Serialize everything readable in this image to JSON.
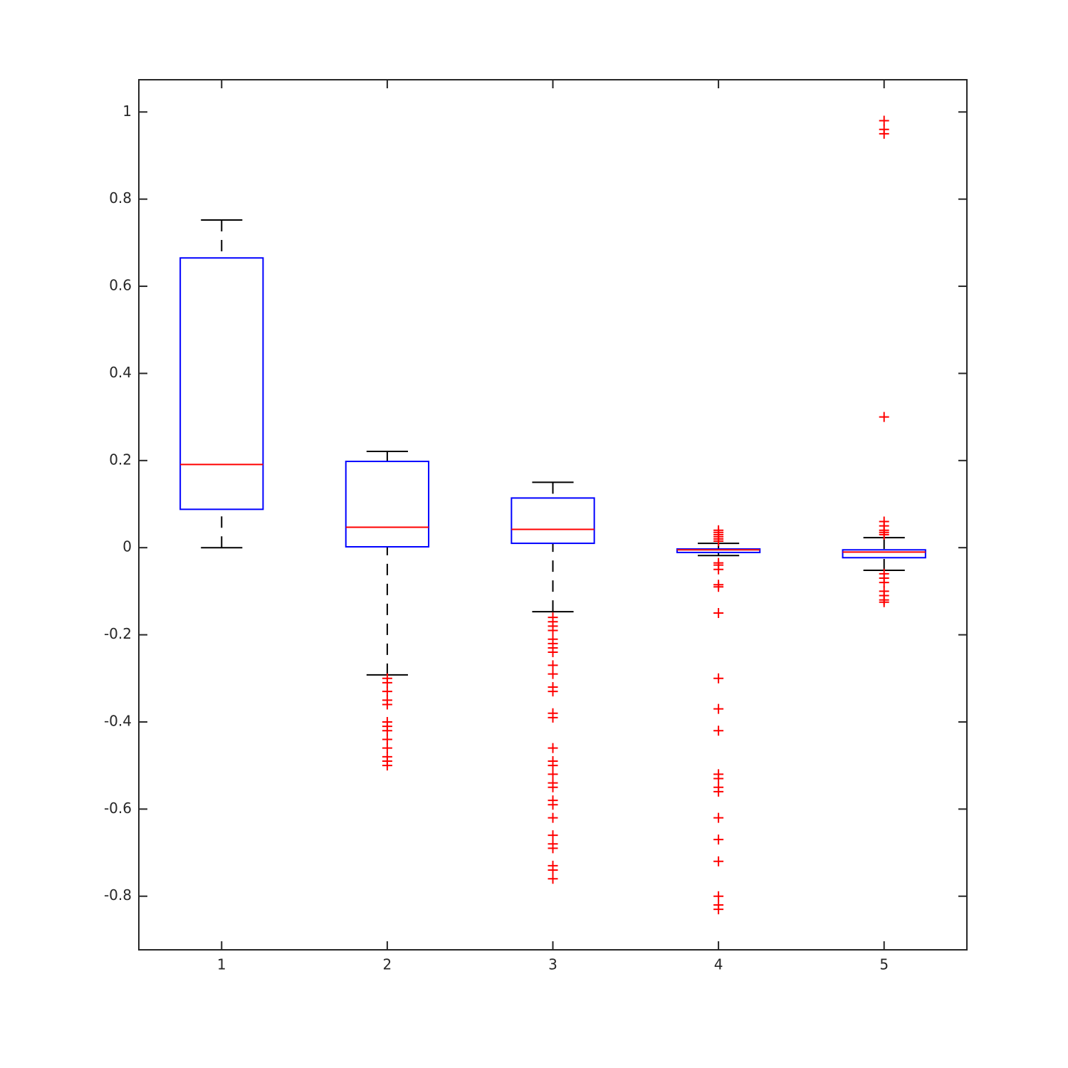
{
  "chart_data": {
    "type": "box",
    "x": [
      1,
      2,
      3,
      4,
      5
    ],
    "xlim": [
      0.5,
      5.5
    ],
    "xticks": [
      1,
      2,
      3,
      4,
      5
    ],
    "ylim": [
      -0.923,
      1.074
    ],
    "yticks": [
      -0.8,
      -0.6,
      -0.4,
      -0.2,
      0,
      0.2,
      0.4,
      0.6,
      0.8,
      1
    ],
    "box_color": "#0000ff",
    "median_color": "#ff0000",
    "whisker_color": "#000000",
    "outlier_color": "#ff0000",
    "boxes": [
      {
        "whisker_low": 0,
        "q1": 0.088,
        "median": 0.191,
        "q3": 0.665,
        "whisker_high": 0.752,
        "outliers": []
      },
      {
        "whisker_low": -0.292,
        "q1": 0.002,
        "median": 0.047,
        "q3": 0.198,
        "whisker_high": 0.221,
        "outliers": [
          -0.3,
          -0.31,
          -0.33,
          -0.35,
          -0.36,
          -0.4,
          -0.41,
          -0.42,
          -0.44,
          -0.46,
          -0.48,
          -0.49,
          -0.5
        ]
      },
      {
        "whisker_low": -0.147,
        "q1": 0.01,
        "median": 0.042,
        "q3": 0.114,
        "whisker_high": 0.15,
        "outliers": [
          -0.16,
          -0.17,
          -0.18,
          -0.19,
          -0.21,
          -0.22,
          -0.23,
          -0.24,
          -0.27,
          -0.29,
          -0.32,
          -0.33,
          -0.38,
          -0.39,
          -0.46,
          -0.49,
          -0.5,
          -0.52,
          -0.54,
          -0.55,
          -0.58,
          -0.59,
          -0.62,
          -0.66,
          -0.68,
          -0.69,
          -0.73,
          -0.74,
          -0.76
        ]
      },
      {
        "whisker_low": -0.018,
        "q1": -0.011,
        "median": -0.005,
        "q3": -0.003,
        "whisker_high": 0.01,
        "outliers": [
          0.04,
          0.035,
          0.03,
          0.025,
          0.02,
          0.015,
          -0.035,
          -0.04,
          -0.05,
          -0.085,
          -0.09,
          -0.15,
          -0.3,
          -0.37,
          -0.42,
          -0.52,
          -0.53,
          -0.55,
          -0.56,
          -0.62,
          -0.67,
          -0.72,
          -0.8,
          -0.82,
          -0.83
        ]
      },
      {
        "whisker_low": -0.052,
        "q1": -0.023,
        "median": -0.01,
        "q3": -0.005,
        "whisker_high": 0.023,
        "outliers": [
          0.98,
          0.96,
          0.95,
          0.3,
          0.06,
          0.05,
          0.04,
          0.035,
          0.03,
          -0.06,
          -0.07,
          -0.08,
          -0.1,
          -0.11,
          -0.12,
          -0.125
        ]
      }
    ]
  }
}
